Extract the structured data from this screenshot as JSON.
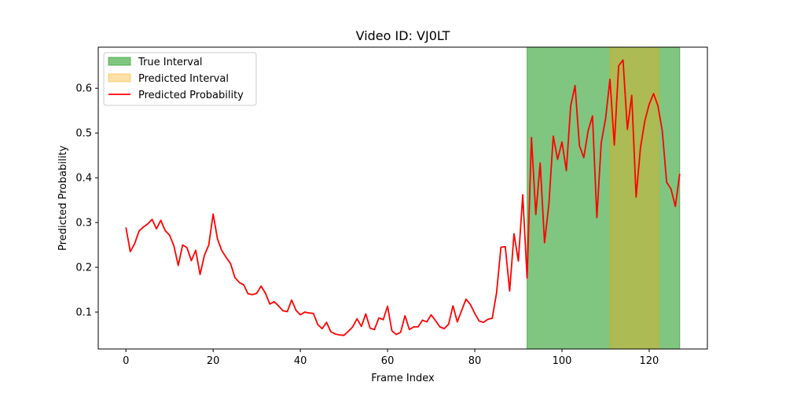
{
  "chart_data": {
    "type": "line",
    "title": "Video ID: VJ0LT",
    "xlabel": "Frame Index",
    "ylabel": "Predicted Probability",
    "xlim": [
      -6.35,
      133.35
    ],
    "ylim": [
      0.0176,
      0.6917
    ],
    "xticks": [
      0,
      20,
      40,
      60,
      80,
      100,
      120
    ],
    "yticks": [
      0.1,
      0.2,
      0.3,
      0.4,
      0.5,
      0.6
    ],
    "grid": false,
    "legend_position": "upper-left",
    "intervals": [
      {
        "name": "True Interval",
        "start": 92,
        "end": 127,
        "color": "#2ca02c",
        "opacity": 0.6
      },
      {
        "name": "Predicted Interval",
        "start": 111,
        "end": 122.2,
        "color": "#ffa500",
        "opacity": 0.35
      }
    ],
    "series": [
      {
        "name": "Predicted Probability",
        "color": "#ff0000",
        "x": [
          0,
          1,
          2,
          3,
          4,
          5,
          6,
          7,
          8,
          9,
          10,
          11,
          12,
          13,
          14,
          15,
          16,
          17,
          18,
          19,
          20,
          21,
          22,
          23,
          24,
          25,
          26,
          27,
          28,
          29,
          30,
          31,
          32,
          33,
          34,
          35,
          36,
          37,
          38,
          39,
          40,
          41,
          42,
          43,
          44,
          45,
          46,
          47,
          48,
          49,
          50,
          51,
          52,
          53,
          54,
          55,
          56,
          57,
          58,
          59,
          60,
          61,
          62,
          63,
          64,
          65,
          66,
          67,
          68,
          69,
          70,
          71,
          72,
          73,
          74,
          75,
          76,
          77,
          78,
          79,
          80,
          81,
          82,
          83,
          84,
          85,
          86,
          87,
          88,
          89,
          90,
          91,
          92,
          93,
          94,
          95,
          96,
          97,
          98,
          99,
          100,
          101,
          102,
          103,
          104,
          105,
          106,
          107,
          108,
          109,
          110,
          111,
          112,
          113,
          114,
          115,
          116,
          117,
          118,
          119,
          120,
          121,
          122,
          123,
          124,
          125,
          126,
          127
        ],
        "values": [
          0.289,
          0.235,
          0.253,
          0.281,
          0.29,
          0.297,
          0.307,
          0.286,
          0.305,
          0.282,
          0.272,
          0.248,
          0.204,
          0.25,
          0.244,
          0.215,
          0.238,
          0.184,
          0.227,
          0.25,
          0.319,
          0.263,
          0.237,
          0.222,
          0.208,
          0.177,
          0.166,
          0.161,
          0.141,
          0.139,
          0.142,
          0.158,
          0.142,
          0.118,
          0.123,
          0.114,
          0.103,
          0.101,
          0.127,
          0.104,
          0.094,
          0.1,
          0.098,
          0.097,
          0.072,
          0.063,
          0.077,
          0.056,
          0.051,
          0.049,
          0.048,
          0.057,
          0.067,
          0.085,
          0.068,
          0.096,
          0.064,
          0.061,
          0.087,
          0.083,
          0.113,
          0.058,
          0.05,
          0.055,
          0.092,
          0.061,
          0.067,
          0.067,
          0.082,
          0.078,
          0.094,
          0.081,
          0.067,
          0.063,
          0.073,
          0.114,
          0.078,
          0.104,
          0.129,
          0.117,
          0.097,
          0.08,
          0.077,
          0.084,
          0.086,
          0.143,
          0.245,
          0.246,
          0.147,
          0.275,
          0.214,
          0.362,
          0.176,
          0.49,
          0.318,
          0.433,
          0.255,
          0.341,
          0.493,
          0.441,
          0.48,
          0.416,
          0.561,
          0.606,
          0.472,
          0.445,
          0.505,
          0.538,
          0.311,
          0.478,
          0.532,
          0.62,
          0.473,
          0.65,
          0.663,
          0.508,
          0.584,
          0.357,
          0.467,
          0.527,
          0.564,
          0.588,
          0.561,
          0.505,
          0.39,
          0.375,
          0.336,
          0.409
        ]
      }
    ]
  }
}
